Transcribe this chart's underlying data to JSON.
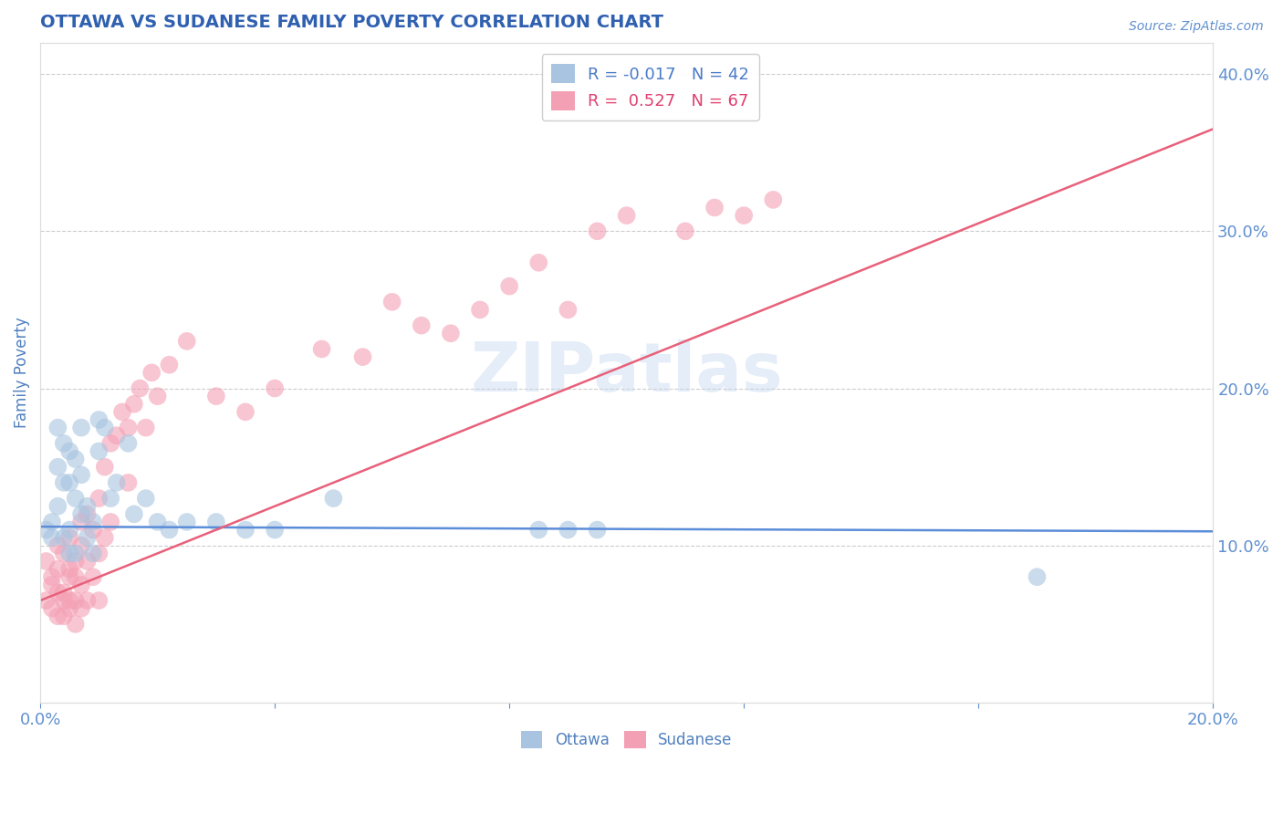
{
  "title": "OTTAWA VS SUDANESE FAMILY POVERTY CORRELATION CHART",
  "source": "Source: ZipAtlas.com",
  "ylabel_label": "Family Poverty",
  "xlim": [
    0.0,
    0.2
  ],
  "ylim": [
    0.0,
    0.42
  ],
  "x_tick_positions": [
    0.0,
    0.04,
    0.08,
    0.12,
    0.16,
    0.2
  ],
  "x_tick_labels": [
    "0.0%",
    "",
    "",
    "",
    "",
    "20.0%"
  ],
  "y_ticks_right": [
    0.1,
    0.2,
    0.3,
    0.4
  ],
  "y_tick_labels_right": [
    "10.0%",
    "20.0%",
    "30.0%",
    "40.0%"
  ],
  "ottawa_R": -0.017,
  "ottawa_N": 42,
  "sudanese_R": 0.527,
  "sudanese_N": 67,
  "ottawa_color": "#a8c4e0",
  "sudanese_color": "#f4a0b4",
  "ottawa_line_color": "#5b8dd9",
  "sudanese_line_color": "#e8607a",
  "legend_label_color": "#1a3a8a",
  "watermark": "ZIPatlas",
  "title_color": "#3060b0",
  "axis_label_color": "#5080c0",
  "tick_label_color": "#6090d0",
  "grid_color": "#cccccc",
  "ottawa_line_y0": 0.112,
  "ottawa_line_y1": 0.109,
  "sudanese_line_y0": 0.065,
  "sudanese_line_y1": 0.365,
  "ottawa_x": [
    0.001,
    0.002,
    0.002,
    0.003,
    0.003,
    0.003,
    0.004,
    0.004,
    0.004,
    0.005,
    0.005,
    0.005,
    0.005,
    0.006,
    0.006,
    0.006,
    0.007,
    0.007,
    0.007,
    0.008,
    0.008,
    0.009,
    0.009,
    0.01,
    0.01,
    0.011,
    0.012,
    0.013,
    0.015,
    0.016,
    0.018,
    0.02,
    0.022,
    0.025,
    0.03,
    0.035,
    0.04,
    0.05,
    0.085,
    0.09,
    0.095,
    0.17
  ],
  "ottawa_y": [
    0.11,
    0.105,
    0.115,
    0.125,
    0.175,
    0.15,
    0.14,
    0.165,
    0.105,
    0.16,
    0.14,
    0.11,
    0.095,
    0.13,
    0.155,
    0.095,
    0.175,
    0.145,
    0.12,
    0.125,
    0.105,
    0.115,
    0.095,
    0.18,
    0.16,
    0.175,
    0.13,
    0.14,
    0.165,
    0.12,
    0.13,
    0.115,
    0.11,
    0.115,
    0.115,
    0.11,
    0.11,
    0.13,
    0.11,
    0.11,
    0.11,
    0.08
  ],
  "sudanese_x": [
    0.001,
    0.001,
    0.002,
    0.002,
    0.002,
    0.003,
    0.003,
    0.003,
    0.003,
    0.004,
    0.004,
    0.004,
    0.004,
    0.005,
    0.005,
    0.005,
    0.005,
    0.005,
    0.006,
    0.006,
    0.006,
    0.006,
    0.007,
    0.007,
    0.007,
    0.007,
    0.008,
    0.008,
    0.008,
    0.009,
    0.009,
    0.01,
    0.01,
    0.01,
    0.011,
    0.011,
    0.012,
    0.012,
    0.013,
    0.014,
    0.015,
    0.015,
    0.016,
    0.017,
    0.018,
    0.019,
    0.02,
    0.022,
    0.025,
    0.03,
    0.035,
    0.04,
    0.048,
    0.055,
    0.06,
    0.065,
    0.07,
    0.075,
    0.08,
    0.085,
    0.09,
    0.095,
    0.1,
    0.11,
    0.115,
    0.12,
    0.125
  ],
  "sudanese_y": [
    0.09,
    0.065,
    0.08,
    0.06,
    0.075,
    0.1,
    0.07,
    0.055,
    0.085,
    0.095,
    0.07,
    0.055,
    0.065,
    0.08,
    0.105,
    0.065,
    0.06,
    0.085,
    0.09,
    0.065,
    0.08,
    0.05,
    0.1,
    0.115,
    0.075,
    0.06,
    0.12,
    0.09,
    0.065,
    0.11,
    0.08,
    0.13,
    0.095,
    0.065,
    0.15,
    0.105,
    0.165,
    0.115,
    0.17,
    0.185,
    0.14,
    0.175,
    0.19,
    0.2,
    0.175,
    0.21,
    0.195,
    0.215,
    0.23,
    0.195,
    0.185,
    0.2,
    0.225,
    0.22,
    0.255,
    0.24,
    0.235,
    0.25,
    0.265,
    0.28,
    0.25,
    0.3,
    0.31,
    0.3,
    0.315,
    0.31,
    0.32
  ]
}
